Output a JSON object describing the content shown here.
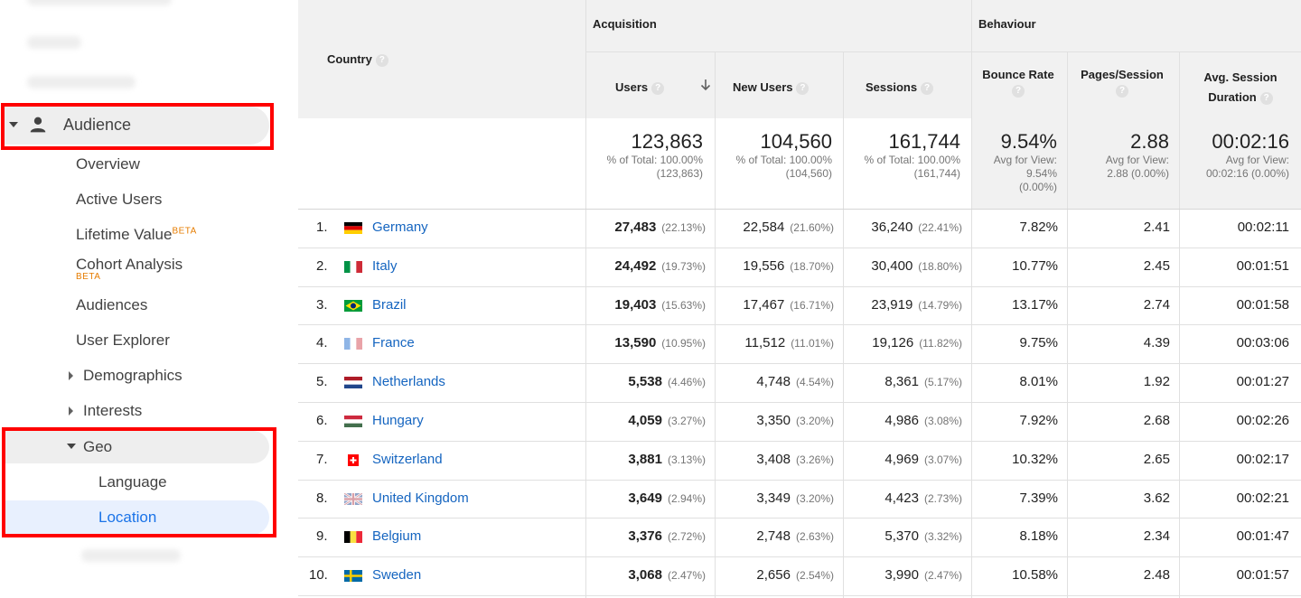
{
  "sidebar": {
    "audience_label": "Audience",
    "items": [
      {
        "label": "Overview"
      },
      {
        "label": "Active Users"
      },
      {
        "label": "Lifetime Value",
        "badge": "BETA"
      },
      {
        "label": "Cohort Analysis",
        "badge": "BETA"
      },
      {
        "label": "Audiences"
      },
      {
        "label": "User Explorer"
      },
      {
        "label": "Demographics"
      },
      {
        "label": "Interests"
      }
    ],
    "geo_label": "Geo",
    "geo_children": [
      {
        "label": "Language"
      },
      {
        "label": "Location"
      }
    ]
  },
  "table": {
    "dimension_header": "Country",
    "group_headers": {
      "acquisition": "Acquisition",
      "behaviour": "Behaviour"
    },
    "columns": {
      "users": "Users",
      "new_users": "New Users",
      "sessions": "Sessions",
      "bounce_rate": "Bounce Rate",
      "pages_session": "Pages/Session",
      "avg_session_1": "Avg. Session",
      "avg_session_2": "Duration"
    },
    "help_glyph": "?",
    "sort_icon": "arrow-down-icon",
    "totals": {
      "users": {
        "value": "123,863",
        "line1": "% of Total: 100.00%",
        "line2": "(123,863)"
      },
      "new_users": {
        "value": "104,560",
        "line1": "% of Total: 100.00%",
        "line2": "(104,560)"
      },
      "sessions": {
        "value": "161,744",
        "line1": "% of Total: 100.00%",
        "line2": "(161,744)"
      },
      "bounce_rate": {
        "value": "9.54%",
        "line1": "Avg for View:",
        "line2": "9.54%",
        "line3": "(0.00%)"
      },
      "pages_session": {
        "value": "2.88",
        "line1": "Avg for View:",
        "line2": "2.88 (0.00%)"
      },
      "avg_session": {
        "value": "00:02:16",
        "line1": "Avg for View:",
        "line2": "00:02:16 (0.00%)"
      }
    },
    "rows": [
      {
        "rank": "1.",
        "country": "Germany",
        "flag": "germany",
        "users": "27,483",
        "users_pct": "(22.13%)",
        "new_users": "22,584",
        "new_users_pct": "(21.60%)",
        "sessions": "36,240",
        "sessions_pct": "(22.41%)",
        "bounce": "7.82%",
        "pages": "2.41",
        "duration": "00:02:11"
      },
      {
        "rank": "2.",
        "country": "Italy",
        "flag": "italy",
        "users": "24,492",
        "users_pct": "(19.73%)",
        "new_users": "19,556",
        "new_users_pct": "(18.70%)",
        "sessions": "30,400",
        "sessions_pct": "(18.80%)",
        "bounce": "10.77%",
        "pages": "2.45",
        "duration": "00:01:51"
      },
      {
        "rank": "3.",
        "country": "Brazil",
        "flag": "brazil",
        "users": "19,403",
        "users_pct": "(15.63%)",
        "new_users": "17,467",
        "new_users_pct": "(16.71%)",
        "sessions": "23,919",
        "sessions_pct": "(14.79%)",
        "bounce": "13.17%",
        "pages": "2.74",
        "duration": "00:01:58"
      },
      {
        "rank": "4.",
        "country": "France",
        "flag": "france",
        "users": "13,590",
        "users_pct": "(10.95%)",
        "new_users": "11,512",
        "new_users_pct": "(11.01%)",
        "sessions": "19,126",
        "sessions_pct": "(11.82%)",
        "bounce": "9.75%",
        "pages": "4.39",
        "duration": "00:03:06"
      },
      {
        "rank": "5.",
        "country": "Netherlands",
        "flag": "netherlands",
        "users": "5,538",
        "users_pct": "(4.46%)",
        "new_users": "4,748",
        "new_users_pct": "(4.54%)",
        "sessions": "8,361",
        "sessions_pct": "(5.17%)",
        "bounce": "8.01%",
        "pages": "1.92",
        "duration": "00:01:27"
      },
      {
        "rank": "6.",
        "country": "Hungary",
        "flag": "hungary",
        "users": "4,059",
        "users_pct": "(3.27%)",
        "new_users": "3,350",
        "new_users_pct": "(3.20%)",
        "sessions": "4,986",
        "sessions_pct": "(3.08%)",
        "bounce": "7.92%",
        "pages": "2.68",
        "duration": "00:02:26"
      },
      {
        "rank": "7.",
        "country": "Switzerland",
        "flag": "switzerland",
        "users": "3,881",
        "users_pct": "(3.13%)",
        "new_users": "3,408",
        "new_users_pct": "(3.26%)",
        "sessions": "4,969",
        "sessions_pct": "(3.07%)",
        "bounce": "10.32%",
        "pages": "2.65",
        "duration": "00:02:17"
      },
      {
        "rank": "8.",
        "country": "United Kingdom",
        "flag": "uk",
        "users": "3,649",
        "users_pct": "(2.94%)",
        "new_users": "3,349",
        "new_users_pct": "(3.20%)",
        "sessions": "4,423",
        "sessions_pct": "(2.73%)",
        "bounce": "7.39%",
        "pages": "3.62",
        "duration": "00:02:21"
      },
      {
        "rank": "9.",
        "country": "Belgium",
        "flag": "belgium",
        "users": "3,376",
        "users_pct": "(2.72%)",
        "new_users": "2,748",
        "new_users_pct": "(2.63%)",
        "sessions": "5,370",
        "sessions_pct": "(3.32%)",
        "bounce": "8.18%",
        "pages": "2.34",
        "duration": "00:01:47"
      },
      {
        "rank": "10.",
        "country": "Sweden",
        "flag": "sweden",
        "users": "3,068",
        "users_pct": "(2.47%)",
        "new_users": "2,656",
        "new_users_pct": "(2.54%)",
        "sessions": "3,990",
        "sessions_pct": "(2.47%)",
        "bounce": "10.58%",
        "pages": "2.48",
        "duration": "00:01:57"
      }
    ]
  },
  "colors": {
    "link": "#1565c0",
    "highlight": "#ff0000",
    "beta": "#e67c00",
    "active_nav": "#1a73e8"
  }
}
